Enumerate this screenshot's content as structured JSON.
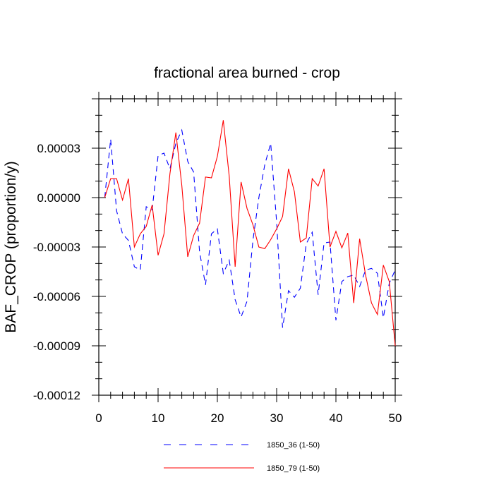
{
  "chart_data": {
    "type": "line",
    "title": "fractional area burned - crop",
    "xlabel": "",
    "ylabel": "BAF_CROP  (proportion/y)",
    "xlim": [
      0,
      50
    ],
    "ylim": [
      -0.00012,
      6e-05
    ],
    "xticks": [
      0,
      10,
      20,
      30,
      40,
      50
    ],
    "xtick_labels": [
      "0",
      "10",
      "20",
      "30",
      "40",
      "50"
    ],
    "yticks": [
      -0.00012,
      -9e-05,
      -6e-05,
      -3e-05,
      0,
      3e-05
    ],
    "ytick_labels": [
      "-0.00012",
      "-0.00009",
      "-0.00006",
      "-0.00003",
      "0.00000",
      "0.00003"
    ],
    "grid": false,
    "legend_position": "bottom",
    "series": [
      {
        "name": "1850_36 (1-50)",
        "color": "#0000ff",
        "style": "dashed",
        "x": [
          1,
          2,
          3,
          4,
          5,
          6,
          7,
          8,
          9,
          10,
          11,
          12,
          13,
          14,
          15,
          16,
          17,
          18,
          19,
          20,
          21,
          22,
          23,
          24,
          25,
          26,
          27,
          28,
          29,
          30,
          31,
          32,
          33,
          34,
          35,
          36,
          37,
          38,
          39,
          40,
          41,
          42,
          43,
          44,
          45,
          46,
          47,
          48,
          49,
          50
        ],
        "y": [
          0.0,
          3.55e-05,
          -8e-06,
          -2.2e-05,
          -2.6e-05,
          -4.2e-05,
          -4.4e-05,
          -5.5e-06,
          -7.5e-06,
          2.55e-05,
          2.7e-05,
          1.75e-05,
          3.3e-05,
          4.1e-05,
          2.2e-05,
          1.55e-05,
          -3.3e-05,
          -5.3e-05,
          -2.2e-05,
          -1.9e-05,
          -4.6e-05,
          -3.8e-05,
          -6.2e-05,
          -7.25e-05,
          -6.3e-05,
          -2.6e-05,
          0.0,
          2e-05,
          3.3e-05,
          -1.5e-05,
          -7.9e-05,
          -5.65e-05,
          -6.05e-05,
          -5.5e-05,
          -2.8e-05,
          -2.1e-05,
          -5.9e-05,
          -2.75e-05,
          -2.7e-05,
          -7.45e-05,
          -5.1e-05,
          -4.8e-05,
          -4.7e-05,
          -5.4e-05,
          -4.4e-05,
          -4.3e-05,
          -4.6e-05,
          -7.3e-05,
          -5.2e-05,
          -4.4e-05
        ]
      },
      {
        "name": "1850_79 (1-50)",
        "color": "#ff0000",
        "style": "solid",
        "x": [
          1,
          2,
          3,
          4,
          5,
          6,
          7,
          8,
          9,
          10,
          11,
          12,
          13,
          14,
          15,
          16,
          17,
          18,
          19,
          20,
          21,
          22,
          23,
          24,
          25,
          26,
          27,
          28,
          29,
          30,
          31,
          32,
          33,
          34,
          35,
          36,
          37,
          38,
          39,
          40,
          41,
          42,
          43,
          44,
          45,
          46,
          47,
          48,
          49,
          50
        ],
        "y": [
          0.0,
          1.15e-05,
          1.15e-05,
          -1.5e-06,
          1.15e-05,
          -3e-05,
          -2.2e-05,
          -1.75e-05,
          -4.5e-06,
          -3.5e-05,
          -2.2e-05,
          1.45e-05,
          3.95e-05,
          7.5e-06,
          -3.6e-05,
          -2.3e-05,
          -1.55e-05,
          1.25e-05,
          1.2e-05,
          2.5e-05,
          4.7e-05,
          1.3e-05,
          -4.2e-05,
          9.5e-06,
          -6.5e-06,
          -1.65e-05,
          -3e-05,
          -3.1e-05,
          -2.55e-05,
          -1.9e-05,
          -1.15e-05,
          1.75e-05,
          3.5e-06,
          -2.7e-05,
          -2.45e-05,
          1.15e-05,
          7e-06,
          1.75e-05,
          -3e-05,
          -2.05e-05,
          -3.05e-05,
          -2.15e-05,
          -6.4e-05,
          -2.5e-05,
          -4.7e-05,
          -6.4e-05,
          -7.1e-05,
          -4.1e-05,
          -5.1e-05,
          -9e-05
        ]
      }
    ]
  }
}
